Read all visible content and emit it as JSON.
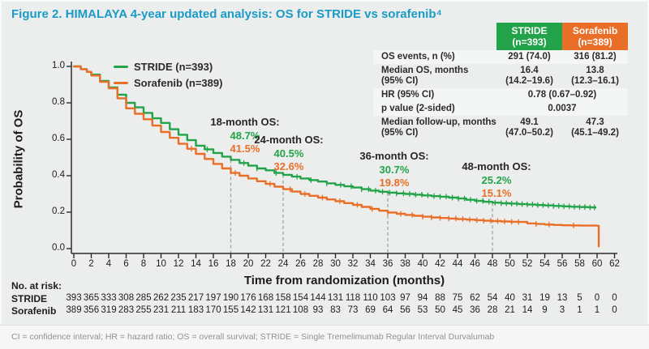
{
  "title": "Figure 2. HIMALAYA 4-year updated analysis: OS for STRIDE vs sorafenib⁴",
  "colors": {
    "stride_green": "#23a349",
    "sorafenib_orange": "#e96e27",
    "title_teal": "#1a9bc7",
    "axis": "#2b2b2b",
    "dash_line": "#9a9e9d",
    "background": "#eceeed"
  },
  "stats_table": {
    "header": {
      "stride": "STRIDE\n(n=393)",
      "sorafenib": "Sorafenib\n(n=389)"
    },
    "rows": [
      {
        "label": "OS events, n (%)",
        "stride": "291 (74.0)",
        "sorafenib": "316 (81.2)"
      },
      {
        "label": "Median OS, months\n(95% CI)",
        "stride": "16.4\n(14.2–19.6)",
        "sorafenib": "13.8\n(12.3–16.1)"
      },
      {
        "label": "HR (95% CI)",
        "combined": "0.78 (0.67–0.92)"
      },
      {
        "label": "p value (2-sided)",
        "combined": "0.0037"
      },
      {
        "label": "Median follow-up, months\n(95% CI)",
        "stride": "49.1\n(47.0–50.2)",
        "sorafenib": "47.3\n(45.1–49.2)"
      }
    ]
  },
  "chart_data": {
    "type": "line",
    "subtype": "kaplan-meier-step",
    "title": "OS for STRIDE vs sorafenib",
    "xlabel": "Time from randomization (months)",
    "ylabel": "Probability of OS",
    "xlim": [
      0,
      62
    ],
    "ylim": [
      0,
      1
    ],
    "grid": false,
    "legend_position": "top-left-inside",
    "x_ticks": [
      0,
      2,
      4,
      6,
      8,
      10,
      12,
      14,
      16,
      18,
      20,
      22,
      24,
      26,
      28,
      30,
      32,
      34,
      36,
      38,
      40,
      42,
      44,
      46,
      48,
      50,
      52,
      54,
      56,
      58,
      60,
      62
    ],
    "y_ticks": [
      0,
      0.2,
      0.4,
      0.6,
      0.8,
      1.0
    ],
    "series": [
      {
        "name": "STRIDE",
        "legend_label": "STRIDE (n=393)",
        "color_key": "stride_green",
        "points": [
          [
            0,
            1.0
          ],
          [
            0.8,
            0.985
          ],
          [
            1.5,
            0.97
          ],
          [
            2,
            0.955
          ],
          [
            3,
            0.92
          ],
          [
            4,
            0.885
          ],
          [
            5,
            0.845
          ],
          [
            6,
            0.8
          ],
          [
            7,
            0.775
          ],
          [
            8,
            0.745
          ],
          [
            9,
            0.715
          ],
          [
            10,
            0.69
          ],
          [
            11,
            0.655
          ],
          [
            12,
            0.625
          ],
          [
            13,
            0.595
          ],
          [
            14,
            0.565
          ],
          [
            15,
            0.545
          ],
          [
            16,
            0.525
          ],
          [
            17,
            0.505
          ],
          [
            18,
            0.487
          ],
          [
            19,
            0.47
          ],
          [
            20,
            0.455
          ],
          [
            21,
            0.44
          ],
          [
            22,
            0.43
          ],
          [
            23,
            0.415
          ],
          [
            24,
            0.405
          ],
          [
            25,
            0.395
          ],
          [
            26,
            0.385
          ],
          [
            27,
            0.376
          ],
          [
            28,
            0.368
          ],
          [
            29,
            0.358
          ],
          [
            30,
            0.35
          ],
          [
            31,
            0.342
          ],
          [
            32,
            0.335
          ],
          [
            33,
            0.326
          ],
          [
            34,
            0.318
          ],
          [
            35,
            0.312
          ],
          [
            36,
            0.307
          ],
          [
            37,
            0.303
          ],
          [
            38,
            0.3
          ],
          [
            39,
            0.296
          ],
          [
            40,
            0.292
          ],
          [
            41,
            0.288
          ],
          [
            42,
            0.285
          ],
          [
            43,
            0.28
          ],
          [
            44,
            0.275
          ],
          [
            45,
            0.268
          ],
          [
            46,
            0.262
          ],
          [
            47,
            0.257
          ],
          [
            48,
            0.252
          ],
          [
            49,
            0.249
          ],
          [
            50,
            0.247
          ],
          [
            51,
            0.244
          ],
          [
            52,
            0.242
          ],
          [
            53,
            0.239
          ],
          [
            54,
            0.237
          ],
          [
            55,
            0.234
          ],
          [
            56,
            0.232
          ],
          [
            57,
            0.23
          ],
          [
            58,
            0.228
          ],
          [
            59,
            0.226
          ],
          [
            59.8,
            0.225
          ]
        ],
        "censor_marks": [
          15.3,
          19.5,
          21.0,
          23.2,
          25.6,
          27.2,
          29.0,
          30.6,
          31.8,
          33.0,
          33.8,
          34.6,
          35.4,
          36.2,
          37.0,
          37.8,
          38.5,
          39.2,
          39.9,
          40.6,
          41.3,
          42.0,
          42.7,
          43.4,
          44.1,
          44.8,
          45.5,
          46.2,
          46.9,
          47.6,
          48.3,
          49.0,
          49.6,
          50.2,
          50.8,
          51.4,
          52.0,
          52.6,
          53.2,
          53.8,
          54.4,
          55.0,
          55.6,
          56.2,
          56.8,
          57.4,
          58.0,
          58.6,
          59.2,
          59.7
        ]
      },
      {
        "name": "Sorafenib",
        "legend_label": "Sorafenib (n=389)",
        "color_key": "sorafenib_orange",
        "points": [
          [
            0,
            1.0
          ],
          [
            0.8,
            0.985
          ],
          [
            1.5,
            0.97
          ],
          [
            2,
            0.95
          ],
          [
            3,
            0.915
          ],
          [
            4,
            0.88
          ],
          [
            5,
            0.825
          ],
          [
            6,
            0.77
          ],
          [
            7,
            0.74
          ],
          [
            8,
            0.71
          ],
          [
            9,
            0.675
          ],
          [
            10,
            0.64
          ],
          [
            11,
            0.608
          ],
          [
            12,
            0.575
          ],
          [
            13,
            0.548
          ],
          [
            14,
            0.52
          ],
          [
            15,
            0.492
          ],
          [
            16,
            0.465
          ],
          [
            17,
            0.44
          ],
          [
            18,
            0.415
          ],
          [
            19,
            0.4
          ],
          [
            20,
            0.385
          ],
          [
            21,
            0.37
          ],
          [
            22,
            0.355
          ],
          [
            23,
            0.34
          ],
          [
            24,
            0.326
          ],
          [
            25,
            0.313
          ],
          [
            26,
            0.3
          ],
          [
            27,
            0.29
          ],
          [
            28,
            0.28
          ],
          [
            29,
            0.27
          ],
          [
            30,
            0.26
          ],
          [
            31,
            0.25
          ],
          [
            32,
            0.24
          ],
          [
            33,
            0.229
          ],
          [
            34,
            0.218
          ],
          [
            35,
            0.208
          ],
          [
            36,
            0.198
          ],
          [
            37,
            0.191
          ],
          [
            38,
            0.185
          ],
          [
            39,
            0.18
          ],
          [
            40,
            0.175
          ],
          [
            41,
            0.171
          ],
          [
            42,
            0.168
          ],
          [
            43,
            0.165
          ],
          [
            44,
            0.162
          ],
          [
            45,
            0.159
          ],
          [
            46,
            0.156
          ],
          [
            47,
            0.153
          ],
          [
            48,
            0.151
          ],
          [
            49,
            0.149
          ],
          [
            50,
            0.147
          ],
          [
            51,
            0.146
          ],
          [
            52,
            0.138
          ],
          [
            53,
            0.135
          ],
          [
            54,
            0.132
          ],
          [
            55,
            0.13
          ],
          [
            56,
            0.128
          ],
          [
            57,
            0.127
          ],
          [
            58,
            0.126
          ],
          [
            60,
            0.125
          ],
          [
            60.2,
            0.012
          ]
        ],
        "censor_marks": [
          13.5,
          18.5,
          22.5,
          24.8,
          26.5,
          28.5,
          30.5,
          32.5,
          34.2,
          36.0,
          37.5,
          38.8,
          40.0,
          41.0,
          42.0,
          43.0,
          43.8,
          44.6,
          45.4,
          46.2,
          47.0,
          47.8,
          48.6,
          49.4,
          50.2,
          51.0,
          53.0,
          54.5,
          57.3
        ]
      }
    ],
    "milestones": [
      {
        "label": "18-month OS:",
        "month": 18,
        "stride": "48.7%",
        "sorafenib": "41.5%"
      },
      {
        "label": "24-month OS:",
        "month": 24,
        "stride": "40.5%",
        "sorafenib": "32.6%"
      },
      {
        "label": "36-month OS:",
        "month": 36,
        "stride": "30.7%",
        "sorafenib": "19.8%"
      },
      {
        "label": "48-month OS:",
        "month": 48,
        "stride": "25.2%",
        "sorafenib": "15.1%"
      }
    ]
  },
  "at_risk": {
    "caption": "No. at risk:",
    "rows": [
      {
        "name": "STRIDE",
        "counts": [
          393,
          365,
          333,
          308,
          285,
          262,
          235,
          217,
          197,
          190,
          176,
          168,
          158,
          154,
          144,
          131,
          118,
          110,
          103,
          97,
          94,
          88,
          75,
          62,
          54,
          40,
          31,
          19,
          13,
          5,
          0,
          0
        ]
      },
      {
        "name": "Sorafenib",
        "counts": [
          389,
          356,
          319,
          283,
          255,
          231,
          211,
          183,
          170,
          155,
          142,
          131,
          121,
          108,
          93,
          83,
          73,
          69,
          64,
          56,
          53,
          50,
          45,
          36,
          28,
          21,
          14,
          9,
          3,
          1,
          1,
          0
        ]
      }
    ]
  },
  "footnote": "CI = confidence interval; HR = hazard ratio; OS = overall survival; STRIDE = Single Tremelimumab Regular Interval Durvalumab"
}
